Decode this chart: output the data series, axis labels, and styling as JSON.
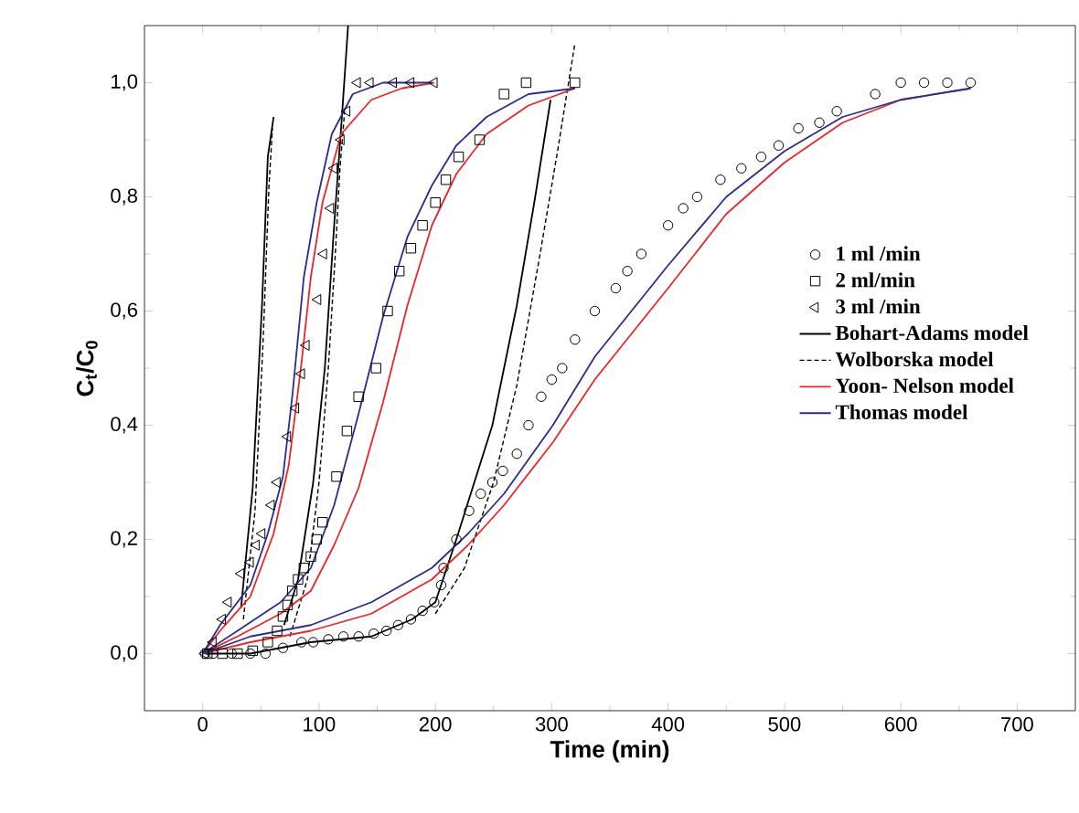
{
  "chart_data": {
    "type": "scatter",
    "xlabel": "Time (min)",
    "ylabel": "C$_{t}$/C$_{0}$",
    "xlim": [
      -50,
      750
    ],
    "ylim": [
      -0.1,
      1.1
    ],
    "xticks": [
      0,
      100,
      200,
      300,
      400,
      500,
      600,
      700
    ],
    "yticks": [
      {
        "value": 0.0,
        "label": "0,0"
      },
      {
        "value": 0.2,
        "label": "0,2"
      },
      {
        "value": 0.4,
        "label": "0,4"
      },
      {
        "value": 0.6,
        "label": "0,6"
      },
      {
        "value": 0.8,
        "label": "0,8"
      },
      {
        "value": 1.0,
        "label": "1,0"
      }
    ],
    "legend": "right",
    "grid": false,
    "series": [
      {
        "name": "1 ml /min",
        "type": "scatter",
        "marker": "circle",
        "color": "#000000",
        "x": [
          2,
          9,
          25,
          41,
          54,
          69,
          85,
          95,
          108,
          121,
          134,
          147,
          158,
          168,
          179,
          189,
          199,
          205,
          207,
          218,
          229,
          239,
          249,
          258,
          270,
          280,
          291,
          300,
          309,
          320,
          337,
          355,
          365,
          377,
          400,
          413,
          425,
          445,
          463,
          480,
          495,
          512,
          530,
          545,
          578,
          600,
          620,
          640,
          660
        ],
        "values": [
          0,
          0,
          0,
          0,
          0,
          0.01,
          0.02,
          0.02,
          0.025,
          0.03,
          0.03,
          0.035,
          0.04,
          0.05,
          0.06,
          0.075,
          0.09,
          0.12,
          0.15,
          0.2,
          0.25,
          0.28,
          0.3,
          0.32,
          0.35,
          0.4,
          0.45,
          0.48,
          0.5,
          0.55,
          0.6,
          0.64,
          0.67,
          0.7,
          0.75,
          0.78,
          0.8,
          0.83,
          0.85,
          0.87,
          0.89,
          0.92,
          0.93,
          0.95,
          0.98,
          1.0,
          1.0,
          1.0,
          1.0
        ]
      },
      {
        "name": "2 ml/min",
        "type": "scatter",
        "marker": "square",
        "color": "#000000",
        "x": [
          4,
          17,
          30,
          43,
          56,
          64,
          69,
          73,
          77,
          82,
          87,
          93,
          98,
          103,
          115,
          124,
          134,
          149,
          159,
          169,
          179,
          189,
          200,
          209,
          220,
          238,
          259,
          278,
          320
        ],
        "values": [
          0,
          0,
          0,
          0.005,
          0.02,
          0.04,
          0.065,
          0.085,
          0.11,
          0.13,
          0.15,
          0.17,
          0.2,
          0.23,
          0.31,
          0.39,
          0.45,
          0.5,
          0.6,
          0.67,
          0.71,
          0.75,
          0.79,
          0.83,
          0.87,
          0.9,
          0.98,
          1.0,
          1.0
        ]
      },
      {
        "name": "3 ml /min",
        "type": "scatter",
        "marker": "triangle",
        "color": "#000000",
        "x": [
          2,
          9,
          17,
          22,
          33,
          41,
          46,
          51,
          59,
          64,
          73,
          80,
          85,
          89,
          99,
          104,
          110,
          113,
          119,
          124,
          133,
          144,
          164,
          179,
          199
        ],
        "values": [
          0,
          0.02,
          0.06,
          0.09,
          0.14,
          0.16,
          0.19,
          0.21,
          0.26,
          0.3,
          0.38,
          0.43,
          0.49,
          0.54,
          0.62,
          0.7,
          0.78,
          0.85,
          0.9,
          0.95,
          1.0,
          1.0,
          1.0,
          1.0,
          1.0
        ]
      },
      {
        "name": "Bohart-Adams model",
        "type": "line",
        "line_style": "solid",
        "color": "#000000",
        "x": [
          2,
          41,
          93,
          145,
          180,
          200,
          218,
          249,
          270,
          285,
          299
        ],
        "values": [
          0,
          0.0,
          0.02,
          0.03,
          0.06,
          0.09,
          0.2,
          0.4,
          0.61,
          0.79,
          0.97
        ]
      },
      {
        "type": "line",
        "line_style": "solid",
        "color": "#000000",
        "x": [
          70,
          82,
          95,
          105,
          113,
          120,
          125
        ],
        "values": [
          0.05,
          0.13,
          0.3,
          0.5,
          0.75,
          0.95,
          1.1
        ]
      },
      {
        "type": "line",
        "line_style": "solid",
        "color": "#000000",
        "x": [
          33,
          43,
          51,
          56,
          61
        ],
        "values": [
          0.08,
          0.29,
          0.61,
          0.87,
          0.94
        ]
      },
      {
        "name": "Wolborska model",
        "type": "line",
        "line_style": "dashed",
        "color": "#000000",
        "x": [
          200,
          225,
          250,
          270,
          290,
          305,
          320
        ],
        "values": [
          0.07,
          0.15,
          0.3,
          0.47,
          0.7,
          0.88,
          1.07
        ]
      },
      {
        "type": "line",
        "line_style": "dashed",
        "color": "#000000",
        "x": [
          75,
          90,
          100,
          108,
          114,
          118,
          122
        ],
        "values": [
          0.03,
          0.13,
          0.3,
          0.5,
          0.7,
          0.85,
          0.95
        ]
      },
      {
        "type": "line",
        "line_style": "dashed",
        "color": "#000000",
        "x": [
          35,
          45,
          52,
          57,
          60
        ],
        "values": [
          0.06,
          0.25,
          0.55,
          0.82,
          0.92
        ]
      },
      {
        "name": "Yoon- Nelson model",
        "type": "line",
        "line_style": "solid",
        "color": "#e8262b",
        "x": [
          0,
          41,
          93,
          145,
          197,
          228,
          259,
          301,
          337,
          400,
          450,
          500,
          550,
          600,
          660
        ],
        "values": [
          0,
          0.02,
          0.04,
          0.07,
          0.13,
          0.19,
          0.26,
          0.37,
          0.48,
          0.64,
          0.77,
          0.86,
          0.93,
          0.97,
          0.99
        ]
      },
      {
        "type": "line",
        "line_style": "solid",
        "color": "#e8262b",
        "x": [
          0,
          30,
          67,
          93,
          113,
          134,
          155,
          176,
          197,
          218,
          244,
          280,
          320
        ],
        "values": [
          0,
          0.03,
          0.07,
          0.11,
          0.19,
          0.29,
          0.44,
          0.61,
          0.75,
          0.84,
          0.91,
          0.96,
          0.99
        ]
      },
      {
        "type": "line",
        "line_style": "solid",
        "color": "#e8262b",
        "x": [
          0,
          15,
          41,
          61,
          74,
          85,
          93,
          103,
          119,
          145,
          171,
          199
        ],
        "values": [
          0,
          0.04,
          0.1,
          0.21,
          0.33,
          0.51,
          0.66,
          0.79,
          0.91,
          0.97,
          0.99,
          1.0
        ]
      },
      {
        "name": "Thomas  model",
        "type": "line",
        "line_style": "solid",
        "color": "#2b2c8c",
        "x": [
          0,
          41,
          93,
          145,
          197,
          228,
          259,
          301,
          337,
          400,
          450,
          500,
          550,
          600,
          660
        ],
        "values": [
          0,
          0.03,
          0.05,
          0.09,
          0.15,
          0.21,
          0.28,
          0.4,
          0.52,
          0.68,
          0.8,
          0.88,
          0.94,
          0.97,
          0.99
        ]
      },
      {
        "type": "line",
        "line_style": "solid",
        "color": "#2b2c8c",
        "x": [
          0,
          30,
          67,
          93,
          113,
          134,
          155,
          176,
          197,
          218,
          244,
          280,
          320
        ],
        "values": [
          0,
          0.04,
          0.09,
          0.15,
          0.26,
          0.42,
          0.59,
          0.73,
          0.82,
          0.89,
          0.94,
          0.98,
          0.99
        ]
      },
      {
        "type": "line",
        "line_style": "solid",
        "color": "#2b2c8c",
        "x": [
          0,
          15,
          41,
          56,
          69,
          77,
          87,
          98,
          111,
          129,
          155,
          197
        ],
        "values": [
          0,
          0.05,
          0.12,
          0.21,
          0.31,
          0.45,
          0.66,
          0.79,
          0.91,
          0.98,
          1.0,
          1.0
        ]
      }
    ]
  }
}
